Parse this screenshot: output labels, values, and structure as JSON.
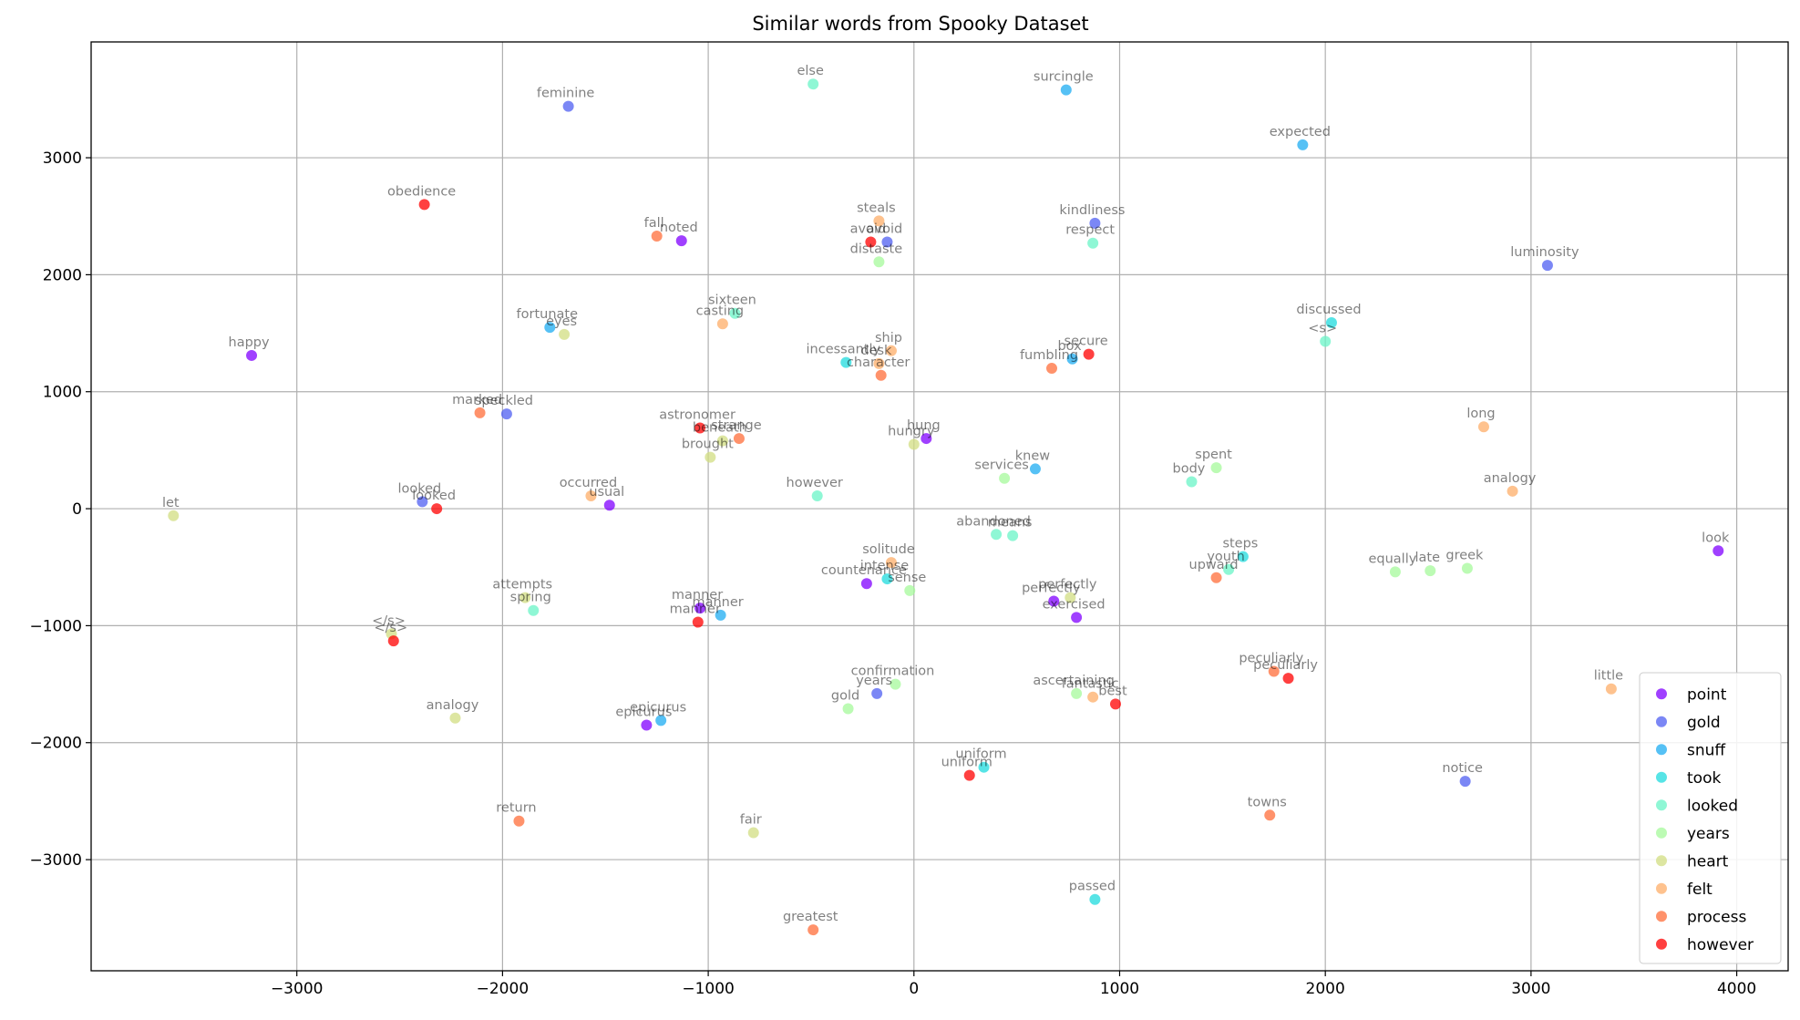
{
  "chart_data": {
    "type": "scatter",
    "title": "Similar words from Spooky Dataset",
    "xlabel": "",
    "ylabel": "",
    "xlim": [
      -4000,
      4250
    ],
    "ylim": [
      -3950,
      3990
    ],
    "xticks": [
      -3000,
      -2000,
      -1000,
      0,
      1000,
      2000,
      3000,
      4000
    ],
    "yticks": [
      -3000,
      -2000,
      -1000,
      0,
      1000,
      2000,
      3000
    ],
    "xtick_labels": [
      "−3000",
      "−2000",
      "−1000",
      "0",
      "1000",
      "2000",
      "3000",
      "4000"
    ],
    "ytick_labels": [
      "−3000",
      "−2000",
      "−1000",
      "0",
      "1000",
      "2000",
      "3000"
    ],
    "grid": true,
    "legend_position": "lower-right",
    "series": [
      {
        "name": "point",
        "color": "#8000ff",
        "points": [
          {
            "x": -3220,
            "y": 1310,
            "label": "happy"
          },
          {
            "x": -1130,
            "y": 2290,
            "label": "noted"
          },
          {
            "x": -1480,
            "y": 30,
            "label": "usual"
          },
          {
            "x": 60,
            "y": 600,
            "label": "hung"
          },
          {
            "x": -1040,
            "y": -850,
            "label": "manner"
          },
          {
            "x": -230,
            "y": -640,
            "label": "countenance"
          },
          {
            "x": 680,
            "y": -790,
            "label": "perfectly"
          },
          {
            "x": 790,
            "y": -930,
            "label": "exercised"
          },
          {
            "x": -1300,
            "y": -1850,
            "label": "epicurus"
          },
          {
            "x": 3910,
            "y": -360,
            "label": "look"
          }
        ]
      },
      {
        "name": "gold",
        "color": "#4f5ff1",
        "points": [
          {
            "x": -1680,
            "y": 3440,
            "label": "feminine"
          },
          {
            "x": -1980,
            "y": 810,
            "label": "speckled"
          },
          {
            "x": -2390,
            "y": 60,
            "label": "looked"
          },
          {
            "x": -130,
            "y": 2280,
            "label": "avoid"
          },
          {
            "x": 880,
            "y": 2440,
            "label": "kindliness"
          },
          {
            "x": 3080,
            "y": 2080,
            "label": "luminosity"
          },
          {
            "x": -180,
            "y": -1580,
            "label": "years"
          },
          {
            "x": 2680,
            "y": -2330,
            "label": "notice"
          }
        ]
      },
      {
        "name": "snuff",
        "color": "#1eacf1",
        "points": [
          {
            "x": 740,
            "y": 3580,
            "label": "surcingle"
          },
          {
            "x": 1890,
            "y": 3110,
            "label": "expected"
          },
          {
            "x": -1770,
            "y": 1550,
            "label": "fortunate"
          },
          {
            "x": 770,
            "y": 1280,
            "label": "box"
          },
          {
            "x": 590,
            "y": 340,
            "label": "knew"
          },
          {
            "x": -940,
            "y": -910,
            "label": "manner"
          },
          {
            "x": -1230,
            "y": -1810,
            "label": "epicurus"
          }
        ]
      },
      {
        "name": "took",
        "color": "#1fdbdd",
        "points": [
          {
            "x": -330,
            "y": 1250,
            "label": "incessantly"
          },
          {
            "x": 2030,
            "y": 1590,
            "label": "discussed"
          },
          {
            "x": 1600,
            "y": -410,
            "label": "steps"
          },
          {
            "x": -130,
            "y": -600,
            "label": "intense"
          },
          {
            "x": 340,
            "y": -2210,
            "label": "uniform"
          },
          {
            "x": 880,
            "y": -3340,
            "label": "passed"
          }
        ]
      },
      {
        "name": "looked",
        "color": "#6af4c7",
        "points": [
          {
            "x": -490,
            "y": 3630,
            "label": "else"
          },
          {
            "x": 870,
            "y": 2270,
            "label": "respect"
          },
          {
            "x": -870,
            "y": 1670,
            "label": "sixteen"
          },
          {
            "x": 2000,
            "y": 1430,
            "label": "<s>"
          },
          {
            "x": -470,
            "y": 110,
            "label": "however"
          },
          {
            "x": 1350,
            "y": 230,
            "label": "body"
          },
          {
            "x": 400,
            "y": -220,
            "label": "abandoned"
          },
          {
            "x": 480,
            "y": -230,
            "label": "means"
          },
          {
            "x": 1530,
            "y": -520,
            "label": "youth"
          },
          {
            "x": -1850,
            "y": -870,
            "label": "spring"
          }
        ]
      },
      {
        "name": "years",
        "color": "#a5f99b",
        "points": [
          {
            "x": -170,
            "y": 2110,
            "label": "distaste"
          },
          {
            "x": 440,
            "y": 260,
            "label": "services"
          },
          {
            "x": 1470,
            "y": 350,
            "label": "spent"
          },
          {
            "x": 2340,
            "y": -540,
            "label": "equally"
          },
          {
            "x": 2510,
            "y": -530,
            "label": "late"
          },
          {
            "x": 2690,
            "y": -510,
            "label": "greek"
          },
          {
            "x": -20,
            "y": -700,
            "label": "sense"
          },
          {
            "x": -90,
            "y": -1500,
            "label": "confirmation"
          },
          {
            "x": -320,
            "y": -1710,
            "label": "gold"
          },
          {
            "x": 790,
            "y": -1580,
            "label": "ascertaining"
          }
        ]
      },
      {
        "name": "heart",
        "color": "#d2de81",
        "points": [
          {
            "x": -1700,
            "y": 1490,
            "label": "eyes"
          },
          {
            "x": -3600,
            "y": -60,
            "label": "let"
          },
          {
            "x": -930,
            "y": 580,
            "label": "beneath"
          },
          {
            "x": -990,
            "y": 440,
            "label": "brought"
          },
          {
            "x": 0,
            "y": 550,
            "label": "hungry"
          },
          {
            "x": -1890,
            "y": -760,
            "label": "attempts"
          },
          {
            "x": 760,
            "y": -760,
            "label": "perfectly"
          },
          {
            "x": -2540,
            "y": -1070,
            "label": "</s>"
          },
          {
            "x": -2230,
            "y": -1790,
            "label": "analogy"
          },
          {
            "x": -780,
            "y": -2770,
            "label": "fair"
          }
        ]
      },
      {
        "name": "felt",
        "color": "#fead68",
        "points": [
          {
            "x": -170,
            "y": 2460,
            "label": "steals"
          },
          {
            "x": -930,
            "y": 1580,
            "label": "casting"
          },
          {
            "x": -110,
            "y": 1350,
            "label": "ship"
          },
          {
            "x": -170,
            "y": 1240,
            "label": "desk"
          },
          {
            "x": 2770,
            "y": 700,
            "label": "long"
          },
          {
            "x": 2910,
            "y": 150,
            "label": "analogy"
          },
          {
            "x": -1570,
            "y": 110,
            "label": "occurred"
          },
          {
            "x": -110,
            "y": -460,
            "label": "solitude"
          },
          {
            "x": 870,
            "y": -1610,
            "label": "fantastic"
          },
          {
            "x": 3390,
            "y": -1540,
            "label": "little"
          }
        ]
      },
      {
        "name": "process",
        "color": "#ff6e3a",
        "points": [
          {
            "x": -1250,
            "y": 2330,
            "label": "fall"
          },
          {
            "x": -2110,
            "y": 820,
            "label": "marked"
          },
          {
            "x": -850,
            "y": 600,
            "label": "strange"
          },
          {
            "x": -160,
            "y": 1140,
            "label": "character"
          },
          {
            "x": 670,
            "y": 1200,
            "label": "fumbling"
          },
          {
            "x": 1470,
            "y": -590,
            "label": "upward"
          },
          {
            "x": 1750,
            "y": -1390,
            "label": "peculiarly"
          },
          {
            "x": -1920,
            "y": -2670,
            "label": "return"
          },
          {
            "x": 1730,
            "y": -2620,
            "label": "towns"
          },
          {
            "x": -490,
            "y": -3600,
            "label": "greatest"
          }
        ]
      },
      {
        "name": "however",
        "color": "#ff0000",
        "points": [
          {
            "x": -2380,
            "y": 2600,
            "label": "obedience"
          },
          {
            "x": -210,
            "y": 2280,
            "label": "avoid"
          },
          {
            "x": 850,
            "y": 1320,
            "label": "secure"
          },
          {
            "x": -1040,
            "y": 690,
            "label": "astronomer"
          },
          {
            "x": -2320,
            "y": 0,
            "label": "looked"
          },
          {
            "x": -1050,
            "y": -970,
            "label": "manner"
          },
          {
            "x": -2530,
            "y": -1130,
            "label": "</s>"
          },
          {
            "x": 980,
            "y": -1670,
            "label": "best"
          },
          {
            "x": 1820,
            "y": -1450,
            "label": "peculiarly"
          },
          {
            "x": 270,
            "y": -2280,
            "label": "uniform"
          }
        ]
      }
    ]
  }
}
